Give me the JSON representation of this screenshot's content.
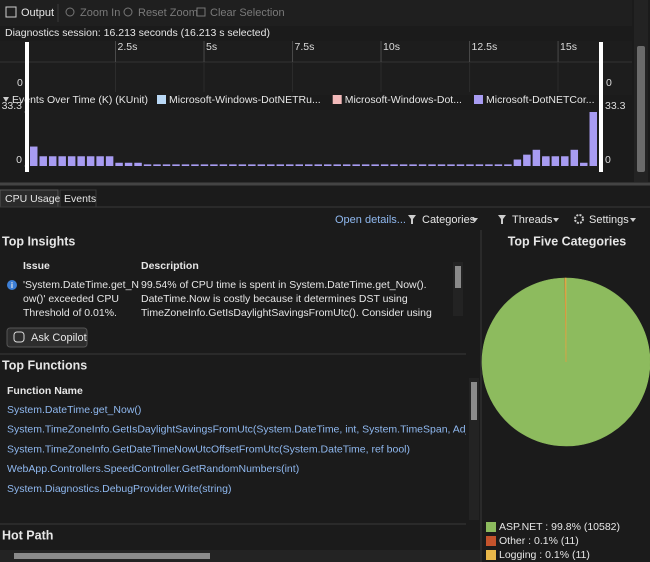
{
  "toolbar": {
    "output": "Output",
    "zoom_in": "Zoom In",
    "reset_zoom": "Reset Zoom",
    "clear_selection": "Clear Selection"
  },
  "session": "Diagnostics session: 16.213 seconds (16.213 s selected)",
  "timeline": {
    "xlim": [
      0,
      16.213
    ],
    "xticks": [
      {
        "value": 2.5,
        "label": "2.5s"
      },
      {
        "value": 5,
        "label": "5s"
      },
      {
        "value": 7.5,
        "label": "7.5s"
      },
      {
        "value": 10,
        "label": "10s"
      },
      {
        "value": 12.5,
        "label": "12.5s"
      },
      {
        "value": 15,
        "label": "15s"
      }
    ],
    "cpu_left_label": "0",
    "cpu_right_label": "0"
  },
  "events": {
    "type": "bar",
    "title": "Events Over Time (K) (KUnit)",
    "ylim": [
      0,
      33.3
    ],
    "yticks": [
      0,
      33.3
    ],
    "series": [
      {
        "name": "Microsoft-Windows-DotNETRu...",
        "color": "#b9d8f5"
      },
      {
        "name": "Microsoft-Windows-Dot...",
        "color": "#f2b9b9",
        "values": [
          0,
          0,
          0,
          0,
          0,
          0,
          0,
          0,
          0,
          0,
          0,
          0,
          0,
          0,
          0,
          0,
          0,
          0,
          0,
          0,
          0,
          0,
          0,
          0,
          0,
          0,
          0,
          0,
          0,
          0,
          0,
          0,
          0,
          0,
          0,
          0,
          0,
          0,
          0,
          0,
          0,
          0,
          0,
          0,
          0,
          0,
          0,
          0,
          0,
          0,
          0,
          0,
          0,
          0,
          5,
          0,
          0,
          0,
          0,
          0
        ]
      },
      {
        "name": "Microsoft-DotNETCor...",
        "color": "#a89cf2",
        "values": [
          12,
          6,
          6,
          6,
          6,
          6,
          6,
          6,
          6,
          2,
          2,
          2,
          1,
          1,
          1,
          1,
          1,
          1,
          1,
          1,
          1,
          1,
          1,
          1,
          1,
          1,
          1,
          1,
          1,
          1,
          1,
          1,
          1,
          1,
          1,
          1,
          1,
          1,
          1,
          1,
          1,
          1,
          1,
          1,
          1,
          1,
          1,
          1,
          1,
          1,
          1,
          4,
          7,
          10,
          6,
          6,
          6,
          10,
          2,
          33.3
        ]
      }
    ]
  },
  "tabs": [
    "CPU Usage",
    "Events"
  ],
  "actions": {
    "open_details": "Open details...",
    "categories": "Categories",
    "threads": "Threads",
    "settings": "Settings"
  },
  "insights": {
    "title": "Top Insights",
    "issue_header": "Issue",
    "description_header": "Description",
    "issue_lines": [
      "'System.DateTime.get_N",
      "ow()' exceeded CPU",
      "Threshold of 0.01%."
    ],
    "description_lines": [
      "99.54% of CPU time is spent in System.DateTime.get_Now().",
      "DateTime.Now is costly because it determines DST using",
      "TimeZoneInfo.GetIsDaylightSavingsFromUtc(). Consider using"
    ],
    "button": "Ask Copilot"
  },
  "functions": {
    "title": "Top Functions",
    "header": "Function Name",
    "rows": [
      "System.DateTime.get_Now()",
      "System.TimeZoneInfo.GetIsDaylightSavingsFromUtc(System.DateTime, int, System.TimeSpan, AdjustmentRule)",
      "System.TimeZoneInfo.GetDateTimeNowUtcOffsetFromUtc(System.DateTime, ref bool)",
      "WebApp.Controllers.SpeedController.GetRandomNumbers(int)",
      "System.Diagnostics.DebugProvider.Write(string)"
    ]
  },
  "hot_path": {
    "title": "Hot Path"
  },
  "categories_chart": {
    "type": "pie",
    "title": "Top Five Categories",
    "categories": [
      "ASP.NET",
      "Other",
      "Logging"
    ],
    "values": [
      99.8,
      0.1,
      0.1
    ],
    "value_labels": [
      "ASP.NET : 99.8% (10582)",
      "Other : 0.1% (11)",
      "Logging : 0.1% (11)"
    ],
    "colors": [
      "#8dbb5e",
      "#c4532c",
      "#e9b84a"
    ]
  }
}
